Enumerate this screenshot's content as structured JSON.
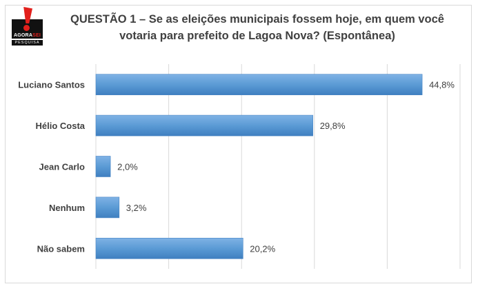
{
  "logo": {
    "brand_main": "AGORA",
    "brand_accent": "SEI",
    "sub": "PESQUISA"
  },
  "chart_data": {
    "type": "bar",
    "orientation": "horizontal",
    "title_line1": "QUESTÃO 1 – Se as eleições municipais fossem hoje, em quem você",
    "title_line2": "votaria para prefeito de Lagoa Nova? (Espontânea)",
    "categories": [
      "Luciano Santos",
      "Hélio Costa",
      "Jean Carlo",
      "Nenhum",
      "Não sabem"
    ],
    "values": [
      44.8,
      29.8,
      2.0,
      3.2,
      20.2
    ],
    "value_labels": [
      "44,8%",
      "29,8%",
      "2,0%",
      "3,2%",
      "20,2%"
    ],
    "xlim": [
      0,
      50
    ],
    "grid": true,
    "bar_color": "#5b9bd5",
    "xlabel": "",
    "ylabel": ""
  }
}
